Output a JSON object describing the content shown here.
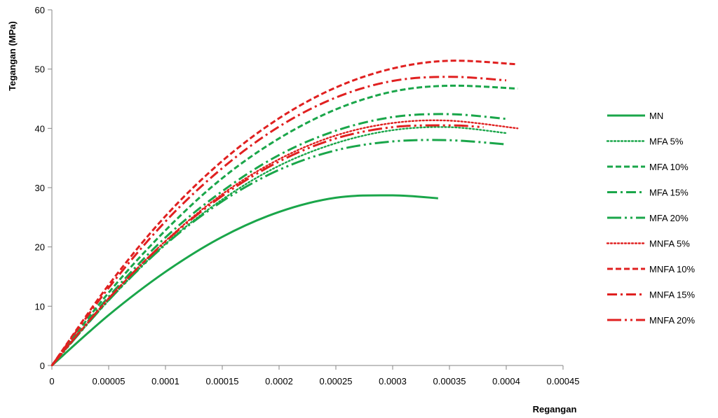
{
  "chart_data": {
    "type": "line",
    "xlabel": "Regangan",
    "ylabel": "Tegangan (MPa)",
    "xlim": [
      0,
      0.00045
    ],
    "ylim": [
      0,
      60
    ],
    "x_ticks": [
      "0",
      "0.00005",
      "0.0001",
      "0.00015",
      "0.0002",
      "0.00025",
      "0.0003",
      "0.00035",
      "0.0004",
      "0.00045"
    ],
    "y_ticks": [
      "0",
      "10",
      "20",
      "30",
      "40",
      "50",
      "60"
    ],
    "grid": false,
    "legend_position": "right",
    "series": [
      {
        "name": "MN",
        "color": "#1aa64a",
        "dash": "solid",
        "x": [
          0,
          5e-05,
          0.0001,
          0.00015,
          0.0002,
          0.00025,
          0.0003,
          0.00034
        ],
        "y": [
          0,
          8.5,
          15.8,
          21.7,
          25.9,
          28.3,
          28.7,
          28.2
        ]
      },
      {
        "name": "MFA 5%",
        "color": "#1aa64a",
        "dash": "dotted",
        "x": [
          0,
          5e-05,
          0.0001,
          0.00015,
          0.0002,
          0.00025,
          0.0003,
          0.00035,
          0.0004
        ],
        "y": [
          0,
          11.0,
          20.5,
          28.0,
          33.7,
          37.5,
          39.7,
          40.2,
          39.2
        ]
      },
      {
        "name": "MFA 10%",
        "color": "#1aa64a",
        "dash": "dashed",
        "x": [
          0,
          5e-05,
          0.0001,
          0.00015,
          0.0002,
          0.00025,
          0.0003,
          0.00035,
          0.00041
        ],
        "y": [
          0,
          12.3,
          22.8,
          31.6,
          38.3,
          43.2,
          46.2,
          47.2,
          46.7
        ]
      },
      {
        "name": "MFA 15%",
        "color": "#1aa64a",
        "dash": "dashdot",
        "x": [
          0,
          5e-05,
          0.0001,
          0.00015,
          0.0002,
          0.00025,
          0.0003,
          0.00035,
          0.0004
        ],
        "y": [
          0,
          11.6,
          21.6,
          29.4,
          35.5,
          39.6,
          41.9,
          42.4,
          41.6
        ]
      },
      {
        "name": "MFA 20%",
        "color": "#1aa64a",
        "dash": "longdashdot",
        "x": [
          0,
          5e-05,
          0.0001,
          0.00015,
          0.0002,
          0.00025,
          0.0003,
          0.00035,
          0.0004
        ],
        "y": [
          0,
          11.0,
          20.4,
          27.7,
          33.0,
          36.3,
          37.8,
          38.0,
          37.3
        ]
      },
      {
        "name": "MNFA 5%",
        "color": "#e02020",
        "dash": "dotted",
        "x": [
          0,
          5e-05,
          0.0001,
          0.00015,
          0.0002,
          0.00025,
          0.0003,
          0.00035,
          0.00041
        ],
        "y": [
          0,
          11.3,
          21.0,
          28.9,
          34.8,
          38.8,
          40.9,
          41.3,
          40.0
        ]
      },
      {
        "name": "MNFA 10%",
        "color": "#e02020",
        "dash": "dashed",
        "x": [
          0,
          5e-05,
          0.0001,
          0.00015,
          0.0002,
          0.00025,
          0.0003,
          0.00035,
          0.00041
        ],
        "y": [
          0,
          13.6,
          25.2,
          34.5,
          41.7,
          46.9,
          50.1,
          51.4,
          50.8
        ]
      },
      {
        "name": "MNFA 15%",
        "color": "#e02020",
        "dash": "dashdot",
        "x": [
          0,
          5e-05,
          0.0001,
          0.00015,
          0.0002,
          0.00025,
          0.0003,
          0.00035,
          0.0004
        ],
        "y": [
          0,
          13.1,
          24.3,
          33.3,
          40.3,
          45.2,
          48.0,
          48.7,
          48.1
        ]
      },
      {
        "name": "MNFA 20%",
        "color": "#e02020",
        "dash": "longdashdot",
        "x": [
          0,
          5e-05,
          0.0001,
          0.00015,
          0.0002,
          0.00025,
          0.0003,
          0.00035,
          0.00038
        ],
        "y": [
          0,
          11.3,
          20.9,
          28.6,
          34.4,
          38.3,
          40.2,
          40.5,
          40.2
        ]
      }
    ]
  }
}
